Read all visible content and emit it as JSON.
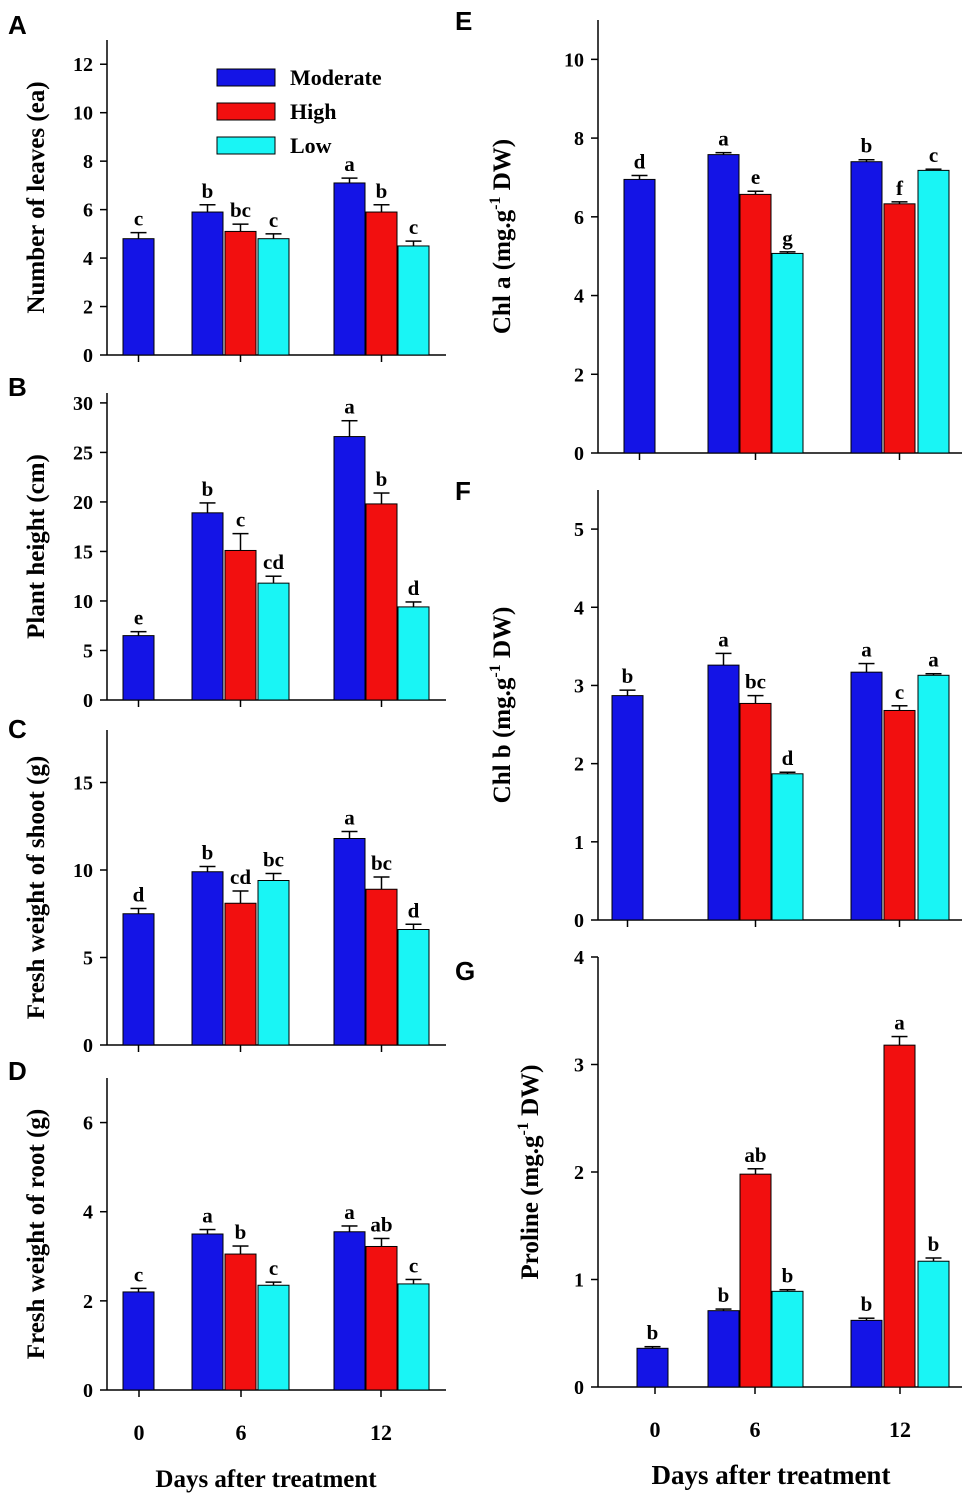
{
  "colors": {
    "moderate": "#1414e6",
    "high": "#f20f0f",
    "low": "#19f5f5"
  },
  "legend": {
    "moderate": "Moderate",
    "high": "High",
    "low": "Low"
  },
  "x_titles": {
    "left": "Days after treatment",
    "right": "Days after treatment"
  },
  "chart_data": [
    {
      "id": "A",
      "panel": "A",
      "type": "bar",
      "categories": [
        "0",
        "6",
        "12"
      ],
      "ylabel": "Number of leaves (ea)",
      "ylim": [
        0,
        13
      ],
      "yticks": [
        0,
        2,
        4,
        6,
        8,
        10,
        12
      ],
      "bars": [
        {
          "day": "0",
          "series": "Moderate",
          "value": 4.8,
          "err": 0.25,
          "letter": "c"
        },
        {
          "day": "6",
          "series": "Moderate",
          "value": 5.9,
          "err": 0.3,
          "letter": "b"
        },
        {
          "day": "6",
          "series": "High",
          "value": 5.1,
          "err": 0.3,
          "letter": "bc"
        },
        {
          "day": "6",
          "series": "Low",
          "value": 4.8,
          "err": 0.2,
          "letter": "c"
        },
        {
          "day": "12",
          "series": "Moderate",
          "value": 7.1,
          "err": 0.2,
          "letter": "a"
        },
        {
          "day": "12",
          "series": "High",
          "value": 5.9,
          "err": 0.3,
          "letter": "b"
        },
        {
          "day": "12",
          "series": "Low",
          "value": 4.5,
          "err": 0.2,
          "letter": "c"
        }
      ]
    },
    {
      "id": "B",
      "panel": "B",
      "type": "bar",
      "categories": [
        "0",
        "6",
        "12"
      ],
      "ylabel": "Plant height (cm)",
      "ylim": [
        0,
        31
      ],
      "yticks": [
        0,
        5,
        10,
        15,
        20,
        25,
        30
      ],
      "bars": [
        {
          "day": "0",
          "series": "Moderate",
          "value": 6.5,
          "err": 0.4,
          "letter": "e"
        },
        {
          "day": "6",
          "series": "Moderate",
          "value": 18.9,
          "err": 1.0,
          "letter": "b"
        },
        {
          "day": "6",
          "series": "High",
          "value": 15.1,
          "err": 1.7,
          "letter": "c"
        },
        {
          "day": "6",
          "series": "Low",
          "value": 11.8,
          "err": 0.7,
          "letter": "cd"
        },
        {
          "day": "12",
          "series": "Moderate",
          "value": 26.6,
          "err": 1.6,
          "letter": "a"
        },
        {
          "day": "12",
          "series": "High",
          "value": 19.8,
          "err": 1.1,
          "letter": "b"
        },
        {
          "day": "12",
          "series": "Low",
          "value": 9.4,
          "err": 0.5,
          "letter": "d"
        }
      ]
    },
    {
      "id": "C",
      "panel": "C",
      "type": "bar",
      "categories": [
        "0",
        "6",
        "12"
      ],
      "ylabel": "Fresh weight of shoot (g)",
      "ylim": [
        0,
        18
      ],
      "yticks": [
        0,
        5,
        10,
        15
      ],
      "bars": [
        {
          "day": "0",
          "series": "Moderate",
          "value": 7.5,
          "err": 0.3,
          "letter": "d"
        },
        {
          "day": "6",
          "series": "Moderate",
          "value": 9.9,
          "err": 0.3,
          "letter": "b"
        },
        {
          "day": "6",
          "series": "High",
          "value": 8.1,
          "err": 0.7,
          "letter": "cd"
        },
        {
          "day": "6",
          "series": "Low",
          "value": 9.4,
          "err": 0.4,
          "letter": "bc"
        },
        {
          "day": "12",
          "series": "Moderate",
          "value": 11.8,
          "err": 0.4,
          "letter": "a"
        },
        {
          "day": "12",
          "series": "High",
          "value": 8.9,
          "err": 0.7,
          "letter": "bc"
        },
        {
          "day": "12",
          "series": "Low",
          "value": 6.6,
          "err": 0.3,
          "letter": "d"
        }
      ]
    },
    {
      "id": "D",
      "panel": "D",
      "type": "bar",
      "categories": [
        "0",
        "6",
        "12"
      ],
      "ylabel": "Fresh weight of root (g)",
      "ylim": [
        0,
        7
      ],
      "yticks": [
        0,
        2,
        4,
        6
      ],
      "bars": [
        {
          "day": "0",
          "series": "Moderate",
          "value": 2.2,
          "err": 0.08,
          "letter": "c"
        },
        {
          "day": "6",
          "series": "Moderate",
          "value": 3.5,
          "err": 0.1,
          "letter": "a"
        },
        {
          "day": "6",
          "series": "High",
          "value": 3.05,
          "err": 0.18,
          "letter": "b"
        },
        {
          "day": "6",
          "series": "Low",
          "value": 2.35,
          "err": 0.07,
          "letter": "c"
        },
        {
          "day": "12",
          "series": "Moderate",
          "value": 3.55,
          "err": 0.13,
          "letter": "a"
        },
        {
          "day": "12",
          "series": "High",
          "value": 3.22,
          "err": 0.18,
          "letter": "ab"
        },
        {
          "day": "12",
          "series": "Low",
          "value": 2.38,
          "err": 0.1,
          "letter": "c"
        }
      ]
    },
    {
      "id": "E",
      "panel": "E",
      "type": "bar",
      "categories": [
        "0",
        "6",
        "12"
      ],
      "ylabel": "Chl a (mg.g",
      "ylabel_sup": "-1",
      "ylabel_tail": " DW)",
      "ylim": [
        0,
        11
      ],
      "yticks": [
        0,
        2,
        4,
        6,
        8,
        10
      ],
      "bars": [
        {
          "day": "0",
          "series": "Moderate",
          "value": 6.95,
          "err": 0.1,
          "letter": "d"
        },
        {
          "day": "6",
          "series": "Moderate",
          "value": 7.58,
          "err": 0.05,
          "letter": "a"
        },
        {
          "day": "6",
          "series": "High",
          "value": 6.57,
          "err": 0.08,
          "letter": "e"
        },
        {
          "day": "6",
          "series": "Low",
          "value": 5.07,
          "err": 0.04,
          "letter": "g"
        },
        {
          "day": "12",
          "series": "Moderate",
          "value": 7.4,
          "err": 0.05,
          "letter": "b"
        },
        {
          "day": "12",
          "series": "High",
          "value": 6.33,
          "err": 0.05,
          "letter": "f"
        },
        {
          "day": "12",
          "series": "Low",
          "value": 7.18,
          "err": 0.03,
          "letter": "c"
        }
      ]
    },
    {
      "id": "F",
      "panel": "F",
      "type": "bar",
      "categories": [
        "0",
        "6",
        "12"
      ],
      "ylabel": "Chl b (mg.g",
      "ylabel_sup": "-1",
      "ylabel_tail": " DW)",
      "ylim": [
        0,
        5.5
      ],
      "yticks": [
        0,
        1,
        2,
        3,
        4,
        5
      ],
      "bars": [
        {
          "day": "0",
          "series": "Moderate",
          "value": 2.87,
          "err": 0.07,
          "letter": "b"
        },
        {
          "day": "6",
          "series": "Moderate",
          "value": 3.26,
          "err": 0.15,
          "letter": "a"
        },
        {
          "day": "6",
          "series": "High",
          "value": 2.77,
          "err": 0.1,
          "letter": "bc"
        },
        {
          "day": "6",
          "series": "Low",
          "value": 1.87,
          "err": 0.02,
          "letter": "d"
        },
        {
          "day": "12",
          "series": "Moderate",
          "value": 3.17,
          "err": 0.11,
          "letter": "a"
        },
        {
          "day": "12",
          "series": "High",
          "value": 2.68,
          "err": 0.06,
          "letter": "c"
        },
        {
          "day": "12",
          "series": "Low",
          "value": 3.13,
          "err": 0.02,
          "letter": "a"
        }
      ]
    },
    {
      "id": "G",
      "panel": "G",
      "type": "bar",
      "categories": [
        "0",
        "6",
        "12"
      ],
      "ylabel": "Proline (mg.g",
      "ylabel_sup": "-1",
      "ylabel_tail": " DW)",
      "ylim": [
        0,
        4
      ],
      "yticks": [
        0,
        1,
        2,
        3,
        4
      ],
      "bars": [
        {
          "day": "0",
          "series": "Moderate",
          "value": 0.36,
          "err": 0.015,
          "letter": "b"
        },
        {
          "day": "6",
          "series": "Moderate",
          "value": 0.71,
          "err": 0.015,
          "letter": "b"
        },
        {
          "day": "6",
          "series": "High",
          "value": 1.98,
          "err": 0.05,
          "letter": "ab"
        },
        {
          "day": "6",
          "series": "Low",
          "value": 0.89,
          "err": 0.015,
          "letter": "b"
        },
        {
          "day": "12",
          "series": "Moderate",
          "value": 0.62,
          "err": 0.02,
          "letter": "b"
        },
        {
          "day": "12",
          "series": "High",
          "value": 3.18,
          "err": 0.08,
          "letter": "a"
        },
        {
          "day": "12",
          "series": "Low",
          "value": 1.17,
          "err": 0.03,
          "letter": "b"
        }
      ]
    }
  ]
}
